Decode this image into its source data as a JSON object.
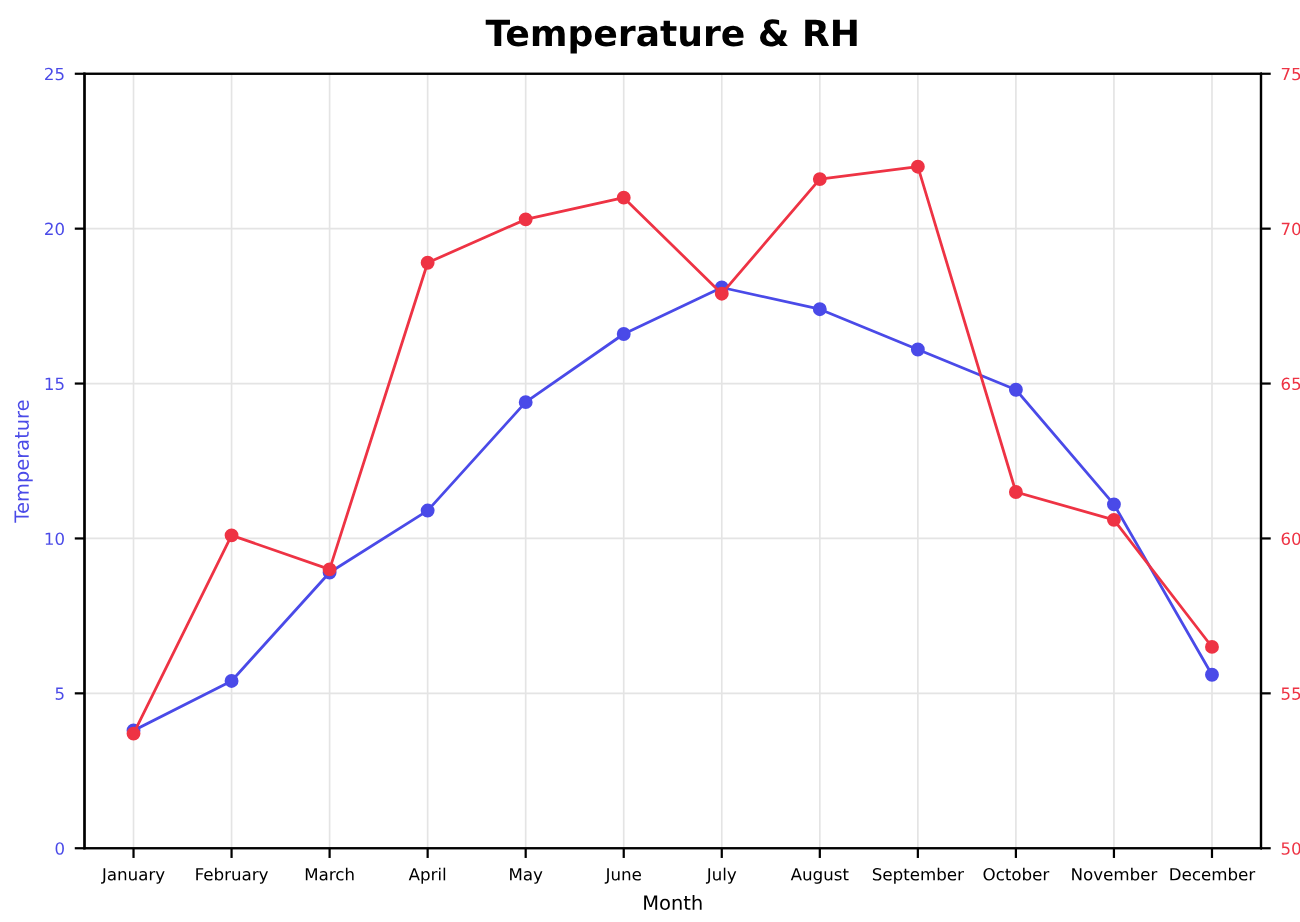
{
  "chart_data": {
    "type": "line",
    "title": "Temperature & RH",
    "xlabel": "Month",
    "ylabel": "Temperature",
    "categories": [
      "January",
      "February",
      "March",
      "April",
      "May",
      "June",
      "July",
      "August",
      "September",
      "October",
      "November",
      "December"
    ],
    "series": [
      {
        "color": "#4a4ae8",
        "values": [
          3.8,
          5.4,
          8.9,
          10.9,
          14.4,
          16.6,
          18.1,
          17.4,
          16.1,
          14.8,
          11.1,
          5.6
        ]
      },
      {
        "color": "#ee3344",
        "axis": "y2",
        "values": [
          53.7,
          60.1,
          59.0,
          68.9,
          70.3,
          71.0,
          67.9,
          71.6,
          72.0,
          61.5,
          60.6,
          56.5
        ]
      }
    ],
    "ylim": [
      0,
      25
    ],
    "yticks": [
      0,
      5,
      10,
      15,
      20,
      25
    ],
    "y2lim": [
      50,
      75
    ],
    "y2ticks": [
      50,
      55,
      60,
      65,
      70,
      75
    ],
    "grid": true,
    "marker": "circle",
    "line_style": "solid",
    "legend": false
  }
}
